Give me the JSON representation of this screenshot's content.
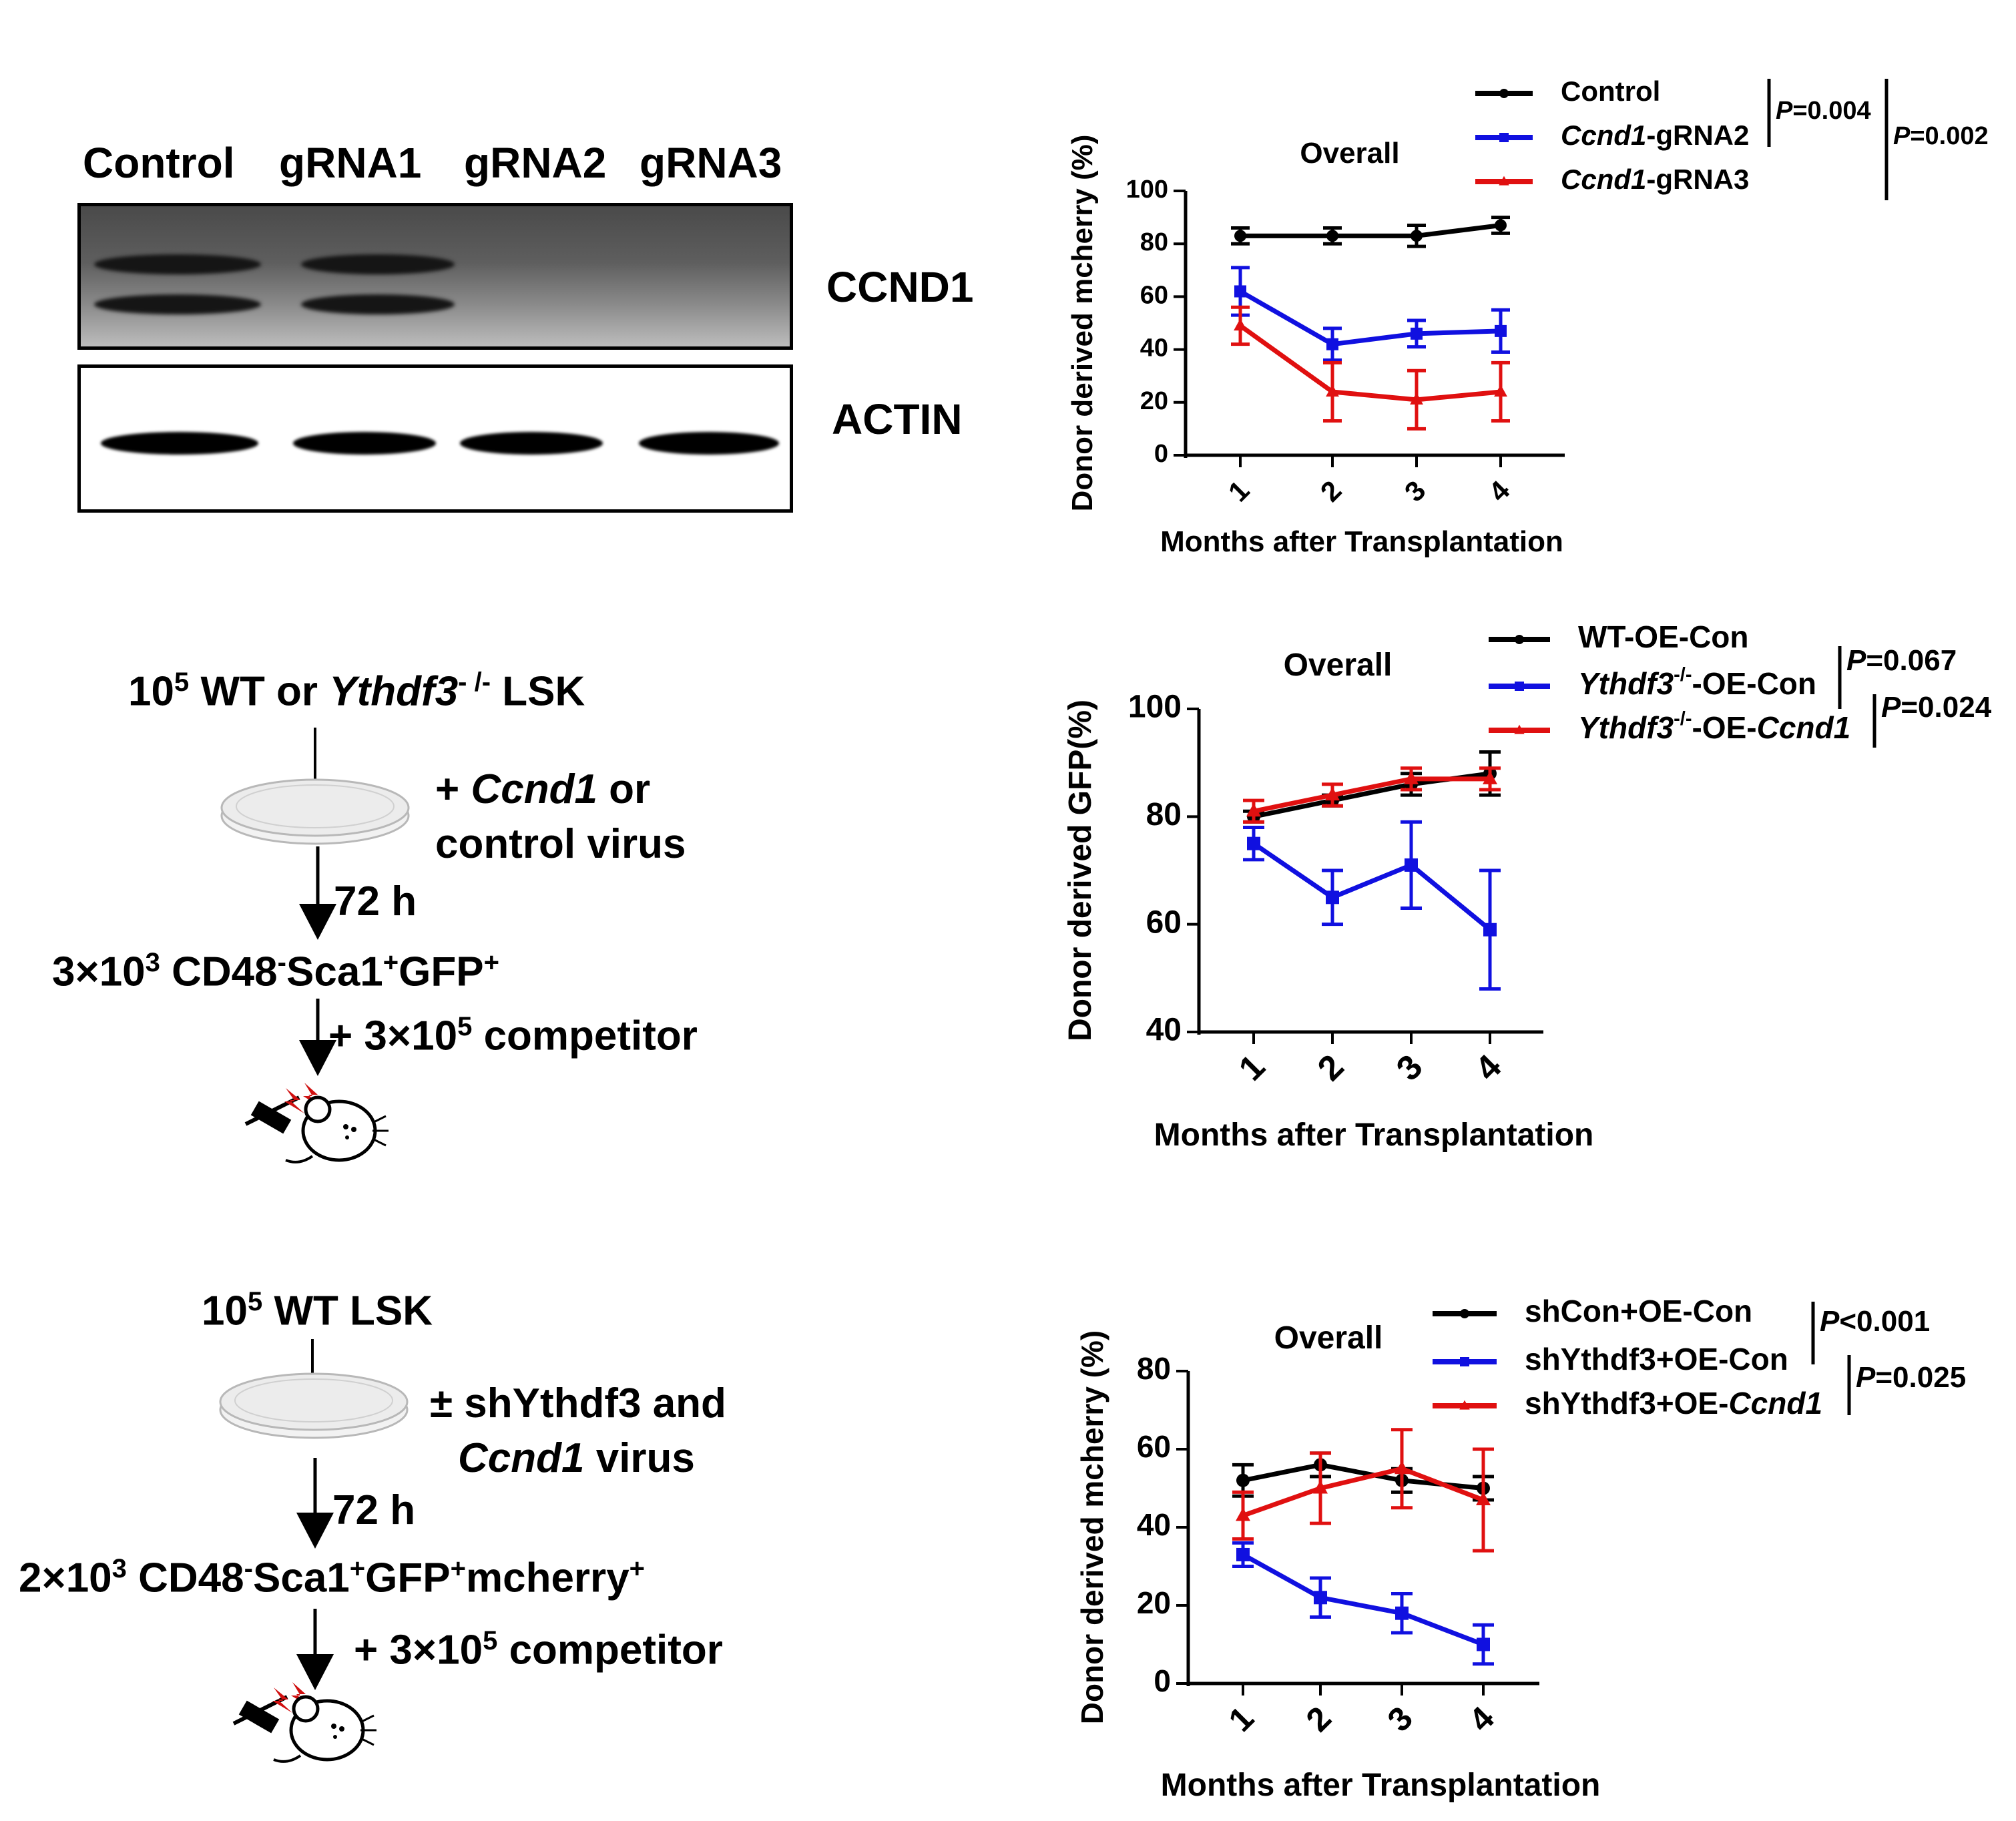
{
  "blot": {
    "lanes": [
      "Control",
      "gRNA1",
      "gRNA2",
      "gRNA3"
    ],
    "bands": [
      "CCND1",
      "ACTIN"
    ]
  },
  "scheme_b": {
    "top_pre": "10",
    "top_sup": "5",
    "top_mid": " WT or ",
    "top_ital": "Ythdf3",
    "top_sup2": "- /-",
    "top_post": " LSK",
    "virus_prefix": "+ ",
    "virus_ital": "Ccnd1",
    "virus_post": " or",
    "virus_line2": "control virus",
    "time": "72 h",
    "cells_pre": "3×10",
    "cells_sup": "3",
    "cells_a": " CD48",
    "cells_sup_a": "-",
    "cells_b": "Sca1",
    "cells_sup_b": "+",
    "cells_c": "GFP",
    "cells_sup_c": "+",
    "comp_pre": "+ 3×10",
    "comp_sup": "5",
    "comp_post": " competitor"
  },
  "scheme_c": {
    "top_pre": "10",
    "top_sup": "5",
    "top_post": " WT LSK",
    "virus_line1": "± shYthdf3 and",
    "virus_ital": "Ccnd1",
    "virus_post": " virus",
    "time": "72 h",
    "cells_pre": "2×10",
    "cells_sup": "3",
    "cells_a": " CD48",
    "cells_sup_a": "-",
    "cells_b": "Sca1",
    "cells_sup_b": "+",
    "cells_c": "GFP",
    "cells_sup_c": "+",
    "cells_d": "mcherry",
    "cells_sup_d": "+",
    "comp_pre": "+ 3×10",
    "comp_sup": "5",
    "comp_post": " competitor"
  },
  "colors": {
    "black": "#000000",
    "blue": "#1010e0",
    "red": "#e01010"
  },
  "chart_data": [
    {
      "type": "line",
      "title": "Overall",
      "xlabel": "Months after Transplantation",
      "ylabel": "Donor derived mcherry (%)",
      "x": [
        1,
        2,
        3,
        4
      ],
      "ylim": [
        0,
        100
      ],
      "yticks": [
        0,
        20,
        40,
        60,
        80,
        100
      ],
      "series": [
        {
          "name": "Control",
          "name_ital": "",
          "name_rest": "Control",
          "color": "#000000",
          "marker": "circle",
          "values": [
            83,
            83,
            83,
            87
          ],
          "errors": [
            3,
            3,
            4,
            3
          ]
        },
        {
          "name": "Ccnd1-gRNA2",
          "name_ital": "Ccnd1",
          "name_rest": "-gRNA2",
          "color": "#1010e0",
          "marker": "square",
          "values": [
            62,
            42,
            46,
            47
          ],
          "errors": [
            9,
            6,
            5,
            8
          ]
        },
        {
          "name": "Ccnd1-gRNA3",
          "name_ital": "Ccnd1",
          "name_rest": "-gRNA3",
          "color": "#e01010",
          "marker": "triangle",
          "values": [
            49,
            24,
            21,
            24
          ],
          "errors": [
            7,
            11,
            11,
            11
          ]
        }
      ],
      "pvalues": [
        "P=0.004",
        "P=0.002"
      ]
    },
    {
      "type": "line",
      "title": "Overall",
      "xlabel": "Months after Transplantation",
      "ylabel": "Donor derived GFP(%)",
      "x": [
        1,
        2,
        3,
        4
      ],
      "ylim": [
        40,
        100
      ],
      "yticks": [
        40,
        60,
        80,
        100
      ],
      "series": [
        {
          "name": "WT-OE-Con",
          "color": "#000000",
          "marker": "circle",
          "values": [
            80,
            83,
            86,
            88
          ],
          "errors": [
            1,
            1,
            2,
            4
          ]
        },
        {
          "name": "Ythdf3-/--OE-Con",
          "color": "#1010e0",
          "marker": "square",
          "values": [
            75,
            65,
            71,
            59
          ],
          "errors": [
            3,
            5,
            8,
            11
          ]
        },
        {
          "name": "Ythdf3-/--OE-Ccnd1",
          "color": "#e01010",
          "marker": "triangle",
          "values": [
            81,
            84,
            87,
            87
          ],
          "errors": [
            2,
            2,
            2,
            2
          ]
        }
      ],
      "pvalues": [
        "P=0.067",
        "P=0.024"
      ]
    },
    {
      "type": "line",
      "title": "Overall",
      "xlabel": "Months after Transplantation",
      "ylabel": "Donor derived mcherry (%)",
      "x": [
        1,
        2,
        3,
        4
      ],
      "ylim": [
        0,
        80
      ],
      "yticks": [
        0,
        20,
        40,
        60,
        80
      ],
      "series": [
        {
          "name": "shCon+OE-Con",
          "color": "#000000",
          "marker": "circle",
          "values": [
            52,
            56,
            52,
            50
          ],
          "errors": [
            4,
            3,
            3,
            3
          ]
        },
        {
          "name": "shYthdf3+OE-Con",
          "color": "#1010e0",
          "marker": "square",
          "values": [
            33,
            22,
            18,
            10
          ],
          "errors": [
            3,
            5,
            5,
            5
          ]
        },
        {
          "name": "shYthdf3+OE-Ccnd1",
          "color": "#e01010",
          "marker": "triangle",
          "values": [
            43,
            50,
            55,
            47
          ],
          "errors": [
            6,
            9,
            10,
            13
          ]
        }
      ],
      "pvalues": [
        "P<0.001",
        "P=0.025"
      ]
    }
  ]
}
